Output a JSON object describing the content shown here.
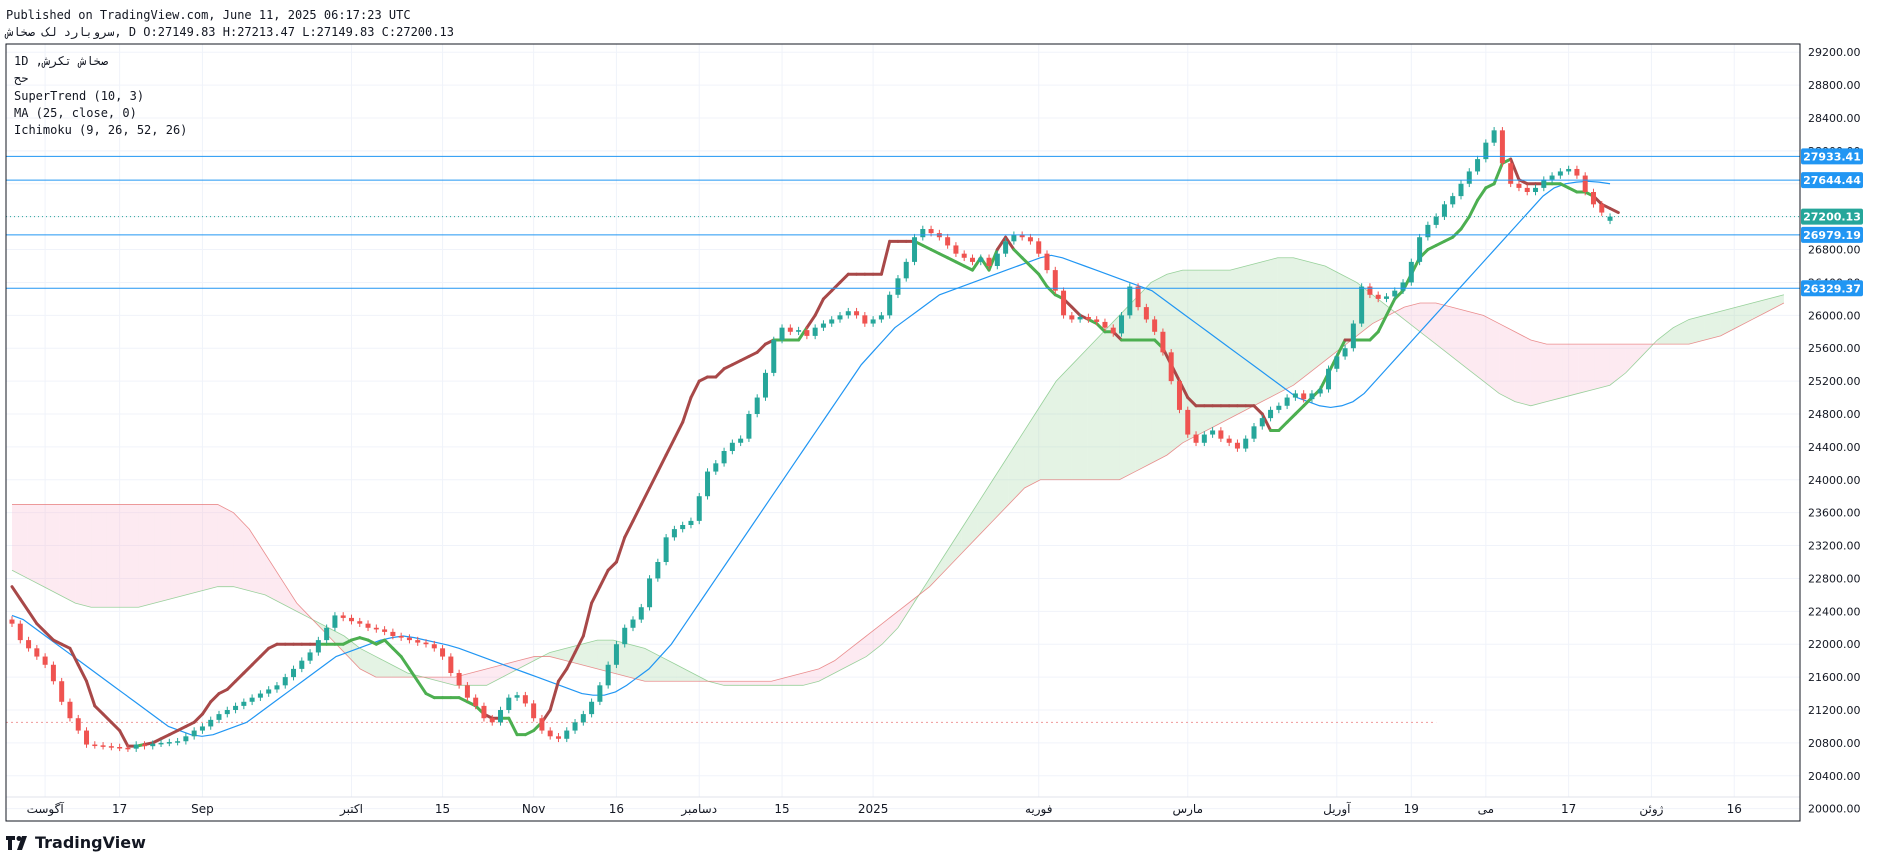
{
  "header": {
    "published": "Published on TradingView.com, June 11, 2025 06:17:23 UTC",
    "ohlc": "سروبارد لک صخاش, D O:27149.83 H:27213.47 L:27149.83 C:27200.13"
  },
  "legend": {
    "symbol": "1D ,صخاش تکرش",
    "exchange": "حح",
    "supertrend": "SuperTrend (10, 3)",
    "ma": "MA (25, close, 0)",
    "ichimoku": "Ichimoku (9, 26, 52, 26)"
  },
  "brand": {
    "name": "TradingView"
  },
  "colors": {
    "up": "#26a69a",
    "down": "#ef5350",
    "supertrend_up": "#4caf50",
    "supertrend_down": "#a84848",
    "ma": "#2196f3",
    "cloud_green": "#a5d6a7",
    "cloud_red": "#f8bbd0",
    "hline": "#2196f3",
    "last_price": "#26a69a"
  },
  "chart_data": {
    "type": "candlestick",
    "title": "",
    "y_ticks": [
      20000,
      20400,
      20800,
      21200,
      21600,
      22000,
      22400,
      22800,
      23200,
      23600,
      24000,
      24400,
      24800,
      25200,
      25600,
      26000,
      26400,
      26800,
      27200,
      27600,
      28000,
      28400,
      28800,
      29200
    ],
    "y_tick_labels": [
      "20000.00",
      "20400.00",
      "20800.00",
      "21200.00",
      "21600.00",
      "22000.00",
      "22400.00",
      "22800.00",
      "23200.00",
      "23600.00",
      "24000.00",
      "24400.00",
      "24800.00",
      "25200.00",
      "25600.00",
      "26000.00",
      "26400.00",
      "26800.00",
      "27200.00",
      "27600.00",
      "28000.00",
      "28400.00",
      "28800.00",
      "29200.00"
    ],
    "ylim": [
      19850,
      29300
    ],
    "x_ticks": [
      {
        "label": "آگوست",
        "bar": 4
      },
      {
        "label": "17",
        "bar": 13
      },
      {
        "label": "Sep",
        "bar": 23
      },
      {
        "label": "اکتبر",
        "bar": 41
      },
      {
        "label": "15",
        "bar": 52
      },
      {
        "label": "Nov",
        "bar": 63
      },
      {
        "label": "16",
        "bar": 73
      },
      {
        "label": "دسامبر",
        "bar": 83
      },
      {
        "label": "15",
        "bar": 93
      },
      {
        "label": "2025",
        "bar": 104
      },
      {
        "label": "فوریه",
        "bar": 124
      },
      {
        "label": "مارس",
        "bar": 142
      },
      {
        "label": "آوریل",
        "bar": 160
      },
      {
        "label": "19",
        "bar": 169
      },
      {
        "label": "می",
        "bar": 178
      },
      {
        "label": "17",
        "bar": 188
      },
      {
        "label": "ژوئن",
        "bar": 198
      },
      {
        "label": "16",
        "bar": 208
      }
    ],
    "total_slots": 215,
    "candles_close": [
      22250,
      22050,
      21950,
      21850,
      21750,
      21550,
      21300,
      21100,
      20950,
      20780,
      20770,
      20760,
      20750,
      20740,
      20730,
      20780,
      20760,
      20790,
      20800,
      20810,
      20820,
      20880,
      20950,
      21000,
      21080,
      21150,
      21200,
      21250,
      21300,
      21350,
      21400,
      21450,
      21500,
      21600,
      21700,
      21800,
      21900,
      22050,
      22200,
      22350,
      22320,
      22280,
      22250,
      22200,
      22180,
      22150,
      22100,
      22080,
      22050,
      22020,
      22000,
      21950,
      21850,
      21650,
      21500,
      21350,
      21250,
      21100,
      21050,
      21200,
      21350,
      21380,
      21280,
      21100,
      20950,
      20880,
      20850,
      20950,
      21050,
      21150,
      21300,
      21500,
      21750,
      22000,
      22200,
      22300,
      22450,
      22800,
      23000,
      23300,
      23400,
      23450,
      23500,
      23800,
      24100,
      24200,
      24350,
      24450,
      24500,
      24800,
      25000,
      25300,
      25700,
      25850,
      25800,
      25820,
      25750,
      25850,
      25900,
      25950,
      26000,
      26050,
      26000,
      25900,
      25950,
      26000,
      26250,
      26450,
      26650,
      26950,
      27050,
      27000,
      26950,
      26850,
      26750,
      26700,
      26650,
      26700,
      26600,
      26750,
      26900,
      26980,
      26950,
      26900,
      26750,
      26550,
      26300,
      26000,
      25950,
      25980,
      25950,
      25920,
      25850,
      25780,
      26000,
      26350,
      26100,
      25950,
      25800,
      25550,
      25200,
      24850,
      24550,
      24450,
      24550,
      24600,
      24500,
      24450,
      24380,
      24500,
      24650,
      24750,
      24850,
      24900,
      25000,
      25050,
      24980,
      25050,
      25100,
      25350,
      25500,
      25600,
      25900,
      26350,
      26250,
      26200,
      26230,
      26300,
      26400,
      26650,
      26950,
      27100,
      27200,
      27350,
      27450,
      27600,
      27750,
      27900,
      28100,
      28250,
      27850,
      27600,
      27550,
      27500,
      27550,
      27650,
      27700,
      27750,
      27780,
      27700,
      27500,
      27350,
      27250,
      27200
    ],
    "candles_open": [
      22300,
      22250,
      22050,
      21950,
      21850,
      21750,
      21550,
      21300,
      21100,
      20950,
      20780,
      20770,
      20760,
      20750,
      20740,
      20730,
      20780,
      20760,
      20790,
      20800,
      20810,
      20820,
      20880,
      20950,
      21000,
      21080,
      21150,
      21200,
      21250,
      21300,
      21350,
      21400,
      21450,
      21500,
      21600,
      21700,
      21800,
      21900,
      22050,
      22200,
      22350,
      22320,
      22280,
      22250,
      22200,
      22180,
      22150,
      22100,
      22080,
      22050,
      22020,
      22000,
      21950,
      21850,
      21650,
      21500,
      21350,
      21250,
      21100,
      21050,
      21200,
      21350,
      21380,
      21280,
      21100,
      20950,
      20880,
      20850,
      20950,
      21050,
      21150,
      21300,
      21500,
      21750,
      22000,
      22200,
      22300,
      22450,
      22800,
      23000,
      23300,
      23400,
      23450,
      23500,
      23800,
      24100,
      24200,
      24350,
      24450,
      24500,
      24800,
      25000,
      25300,
      25700,
      25850,
      25800,
      25820,
      25750,
      25850,
      25900,
      25950,
      26000,
      26050,
      26000,
      25900,
      25950,
      26000,
      26250,
      26450,
      26650,
      26950,
      27050,
      27000,
      26950,
      26850,
      26750,
      26700,
      26650,
      26700,
      26600,
      26750,
      26900,
      26980,
      26950,
      26900,
      26750,
      26550,
      26300,
      26000,
      25950,
      25980,
      25950,
      25920,
      25850,
      25780,
      26000,
      26350,
      26100,
      25950,
      25800,
      25550,
      25200,
      24850,
      24550,
      24450,
      24550,
      24600,
      24500,
      24450,
      24380,
      24500,
      24650,
      24750,
      24850,
      24900,
      25000,
      25050,
      24980,
      25050,
      25100,
      25350,
      25500,
      25600,
      25900,
      26350,
      26250,
      26200,
      26230,
      26300,
      26400,
      26650,
      26950,
      27100,
      27200,
      27350,
      27450,
      27600,
      27750,
      27900,
      28100,
      28250,
      27850,
      27600,
      27550,
      27500,
      27550,
      27650,
      27700,
      27750,
      27780,
      27700,
      27500,
      27350,
      27149.83
    ],
    "supertrend": [
      22700,
      22550,
      22400,
      22250,
      22150,
      22050,
      22000,
      21950,
      21750,
      21550,
      21250,
      21150,
      21050,
      20950,
      20760,
      20760,
      20780,
      20800,
      20850,
      20900,
      20950,
      21000,
      21050,
      21150,
      21300,
      21400,
      21450,
      21550,
      21650,
      21750,
      21850,
      21950,
      22000,
      22000,
      22000,
      22000,
      22000,
      22000,
      22000,
      22000,
      22000,
      22050,
      22080,
      22050,
      22000,
      22050,
      21950,
      21850,
      21700,
      21550,
      21400,
      21350,
      21350,
      21350,
      21350,
      21300,
      21250,
      21150,
      21100,
      21100,
      21100,
      20900,
      20900,
      20950,
      21050,
      21200,
      21550,
      21700,
      21900,
      22100,
      22500,
      22700,
      22900,
      23000,
      23300,
      23500,
      23700,
      23900,
      24100,
      24300,
      24500,
      24700,
      25000,
      25200,
      25250,
      25250,
      25350,
      25400,
      25450,
      25500,
      25550,
      25650,
      25700,
      25700,
      25700,
      25700,
      25850,
      26000,
      26200,
      26300,
      26400,
      26500,
      26500,
      26500,
      26500,
      26500,
      26900,
      26900,
      26900,
      26900,
      26850,
      26800,
      26750,
      26700,
      26650,
      26600,
      26550,
      26700,
      26550,
      26800,
      26950,
      26800,
      26700,
      26600,
      26500,
      26350,
      26250,
      26200,
      26100,
      26000,
      25950,
      25900,
      25800,
      25800,
      25700,
      25700,
      25700,
      25700,
      25700,
      25600,
      25400,
      25200,
      25000,
      24900,
      24900,
      24900,
      24900,
      24900,
      24900,
      24900,
      24900,
      24800,
      24600,
      24600,
      24700,
      24800,
      24900,
      25000,
      25100,
      25300,
      25500,
      25700,
      25700,
      25700,
      25700,
      25800,
      26000,
      26200,
      26300,
      26500,
      26700,
      26800,
      26850,
      26900,
      26950,
      27050,
      27200,
      27400,
      27550,
      27600,
      27850,
      27900,
      27650,
      27600,
      27600,
      27600,
      27600,
      27600,
      27550,
      27500,
      27500,
      27450,
      27350,
      27300,
      27250
    ],
    "supertrend_trend": "mixed",
    "ma25": [
      22350,
      22300,
      22200,
      22100,
      22000,
      21900,
      21800,
      21700,
      21600,
      21500,
      21400,
      21300,
      21200,
      21100,
      21000,
      20950,
      20900,
      20880,
      20900,
      20950,
      21000,
      21050,
      21150,
      21250,
      21350,
      21450,
      21550,
      21650,
      21750,
      21850,
      21900,
      21950,
      22000,
      22050,
      22080,
      22100,
      22080,
      22050,
      22020,
      21990,
      21950,
      21900,
      21850,
      21800,
      21750,
      21700,
      21650,
      21600,
      21550,
      21500,
      21450,
      21400,
      21380,
      21380,
      21420,
      21500,
      21600,
      21700,
      21850,
      22000,
      22200,
      22400,
      22600,
      22800,
      23000,
      23200,
      23400,
      23600,
      23800,
      24000,
      24200,
      24400,
      24600,
      24800,
      25000,
      25200,
      25400,
      25550,
      25700,
      25850,
      25950,
      26050,
      26150,
      26250,
      26300,
      26350,
      26400,
      26450,
      26500,
      26550,
      26600,
      26650,
      26700,
      26730,
      26700,
      26650,
      26600,
      26550,
      26500,
      26450,
      26400,
      26350,
      26300,
      26200,
      26100,
      26000,
      25900,
      25800,
      25700,
      25600,
      25500,
      25400,
      25300,
      25200,
      25100,
      25000,
      24950,
      24900,
      24880,
      24900,
      24950,
      25050,
      25200,
      25350,
      25500,
      25650,
      25800,
      25950,
      26100,
      26250,
      26400,
      26550,
      26700,
      26850,
      27000,
      27150,
      27300,
      27450,
      27550,
      27600,
      27620,
      27630,
      27620,
      27600
    ],
    "ichimoku_span_a": [
      22900,
      22800,
      22700,
      22600,
      22500,
      22450,
      22450,
      22450,
      22450,
      22500,
      22550,
      22600,
      22650,
      22700,
      22700,
      22650,
      22600,
      22500,
      22400,
      22300,
      22200,
      22100,
      21950,
      21850,
      21750,
      21650,
      21600,
      21550,
      21500,
      21500,
      21500,
      21600,
      21700,
      21800,
      21900,
      21950,
      22000,
      22050,
      22050,
      22000,
      21950,
      21850,
      21750,
      21650,
      21550,
      21500,
      21500,
      21500,
      21500,
      21500,
      21500,
      21550,
      21650,
      21750,
      21850,
      22000,
      22200,
      22500,
      22800,
      23100,
      23400,
      23700,
      24000,
      24300,
      24600,
      24900,
      25200,
      25400,
      25600,
      25800,
      26000,
      26200,
      26400,
      26500,
      26550,
      26550,
      26550,
      26550,
      26600,
      26650,
      26700,
      26700,
      26650,
      26600,
      26500,
      26400,
      26250,
      26100,
      25950,
      25800,
      25650,
      25500,
      25350,
      25200,
      25050,
      24950,
      24900,
      24950,
      25000,
      25050,
      25100,
      25150,
      25300,
      25500,
      25700,
      25850,
      25950,
      26000,
      26050,
      26100,
      26150,
      26200,
      26250
    ],
    "ichimoku_span_b": [
      23700,
      23700,
      23700,
      23700,
      23700,
      23700,
      23700,
      23700,
      23700,
      23700,
      23700,
      23700,
      23700,
      23700,
      23600,
      23400,
      23100,
      22800,
      22500,
      22300,
      22100,
      21900,
      21700,
      21600,
      21600,
      21600,
      21600,
      21600,
      21600,
      21650,
      21700,
      21750,
      21800,
      21850,
      21850,
      21800,
      21750,
      21700,
      21650,
      21600,
      21550,
      21550,
      21550,
      21550,
      21550,
      21550,
      21550,
      21550,
      21550,
      21600,
      21650,
      21700,
      21800,
      21950,
      22100,
      22250,
      22400,
      22550,
      22700,
      22900,
      23100,
      23300,
      23500,
      23700,
      23900,
      24000,
      24000,
      24000,
      24000,
      24000,
      24000,
      24100,
      24200,
      24300,
      24450,
      24550,
      24650,
      24750,
      24850,
      24950,
      25050,
      25150,
      25300,
      25450,
      25600,
      25750,
      25900,
      26000,
      26100,
      26150,
      26150,
      26100,
      26050,
      26000,
      25900,
      25800,
      25700,
      25650,
      25650,
      25650,
      25650,
      25650,
      25650,
      25650,
      25650,
      25650,
      25650,
      25700,
      25750,
      25850,
      25950,
      26050,
      26150,
      26250
    ],
    "ichimoku_start_bar": 0,
    "horizontal_lines": [
      {
        "label": "27933.41",
        "value": 27933.41
      },
      {
        "label": "27644.44",
        "value": 27644.44
      },
      {
        "label": "26979.19",
        "value": 26979.19
      },
      {
        "label": "26329.37",
        "value": 26329.37
      }
    ],
    "last_price": {
      "label": "27200.13",
      "value": 27200.13
    },
    "dotted_reference": 21050
  }
}
